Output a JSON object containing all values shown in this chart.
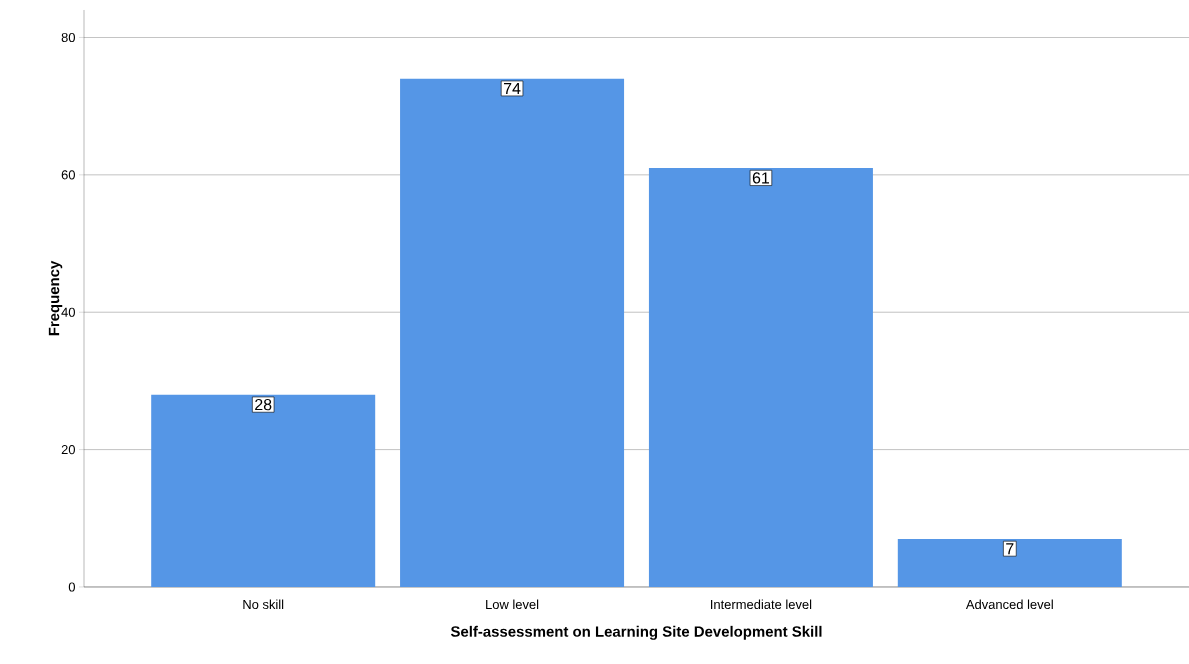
{
  "chart_data": {
    "type": "bar",
    "xlabel": "Self-assessment on Learning Site Development Skill",
    "ylabel": "Frequency",
    "categories": [
      "No skill",
      "Low level",
      "Intermediate level",
      "Advanced level"
    ],
    "values": [
      28,
      74,
      61,
      7
    ],
    "color": "#5596e6",
    "ylim": [
      0,
      84
    ],
    "yticks": [
      0,
      20,
      40,
      60,
      80
    ],
    "grid": "y",
    "data_labels": true
  }
}
